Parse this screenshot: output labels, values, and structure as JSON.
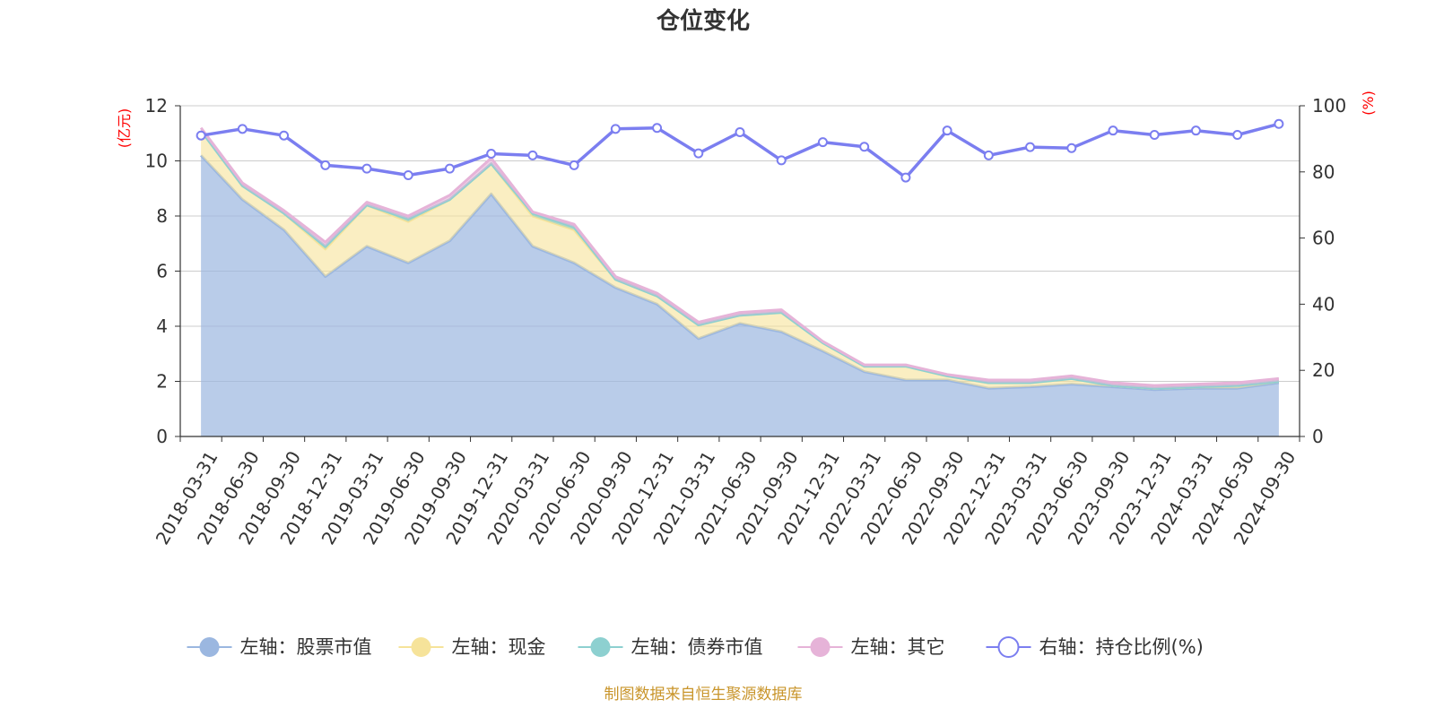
{
  "chart_data": {
    "type": "area",
    "title": "仓位变化",
    "left_axis": {
      "unit_label": "(亿元)",
      "ylim": [
        0,
        12
      ],
      "ticks": [
        0,
        2,
        4,
        6,
        8,
        10,
        12
      ]
    },
    "right_axis": {
      "unit_label": "(%)",
      "ylim": [
        0,
        100
      ],
      "ticks": [
        0,
        20,
        40,
        60,
        80,
        100
      ]
    },
    "categories": [
      "2018-03-31",
      "2018-06-30",
      "2018-09-30",
      "2018-12-31",
      "2019-03-31",
      "2019-06-30",
      "2019-09-30",
      "2019-12-31",
      "2020-03-31",
      "2020-06-30",
      "2020-09-30",
      "2020-12-31",
      "2021-03-31",
      "2021-06-30",
      "2021-09-30",
      "2021-12-31",
      "2022-03-31",
      "2022-06-30",
      "2022-09-30",
      "2022-12-31",
      "2023-03-31",
      "2023-06-30",
      "2023-09-30",
      "2023-12-31",
      "2024-03-31",
      "2024-06-30",
      "2024-09-30"
    ],
    "series": [
      {
        "name": "左轴：股票市值",
        "axis": "left",
        "kind": "stack-area",
        "color": "#9bb7e0",
        "values": [
          10.2,
          8.6,
          7.5,
          5.8,
          6.9,
          6.3,
          7.1,
          8.8,
          6.9,
          6.3,
          5.4,
          4.8,
          3.55,
          4.1,
          3.8,
          3.1,
          2.35,
          2.05,
          2.05,
          1.75,
          1.8,
          1.9,
          1.8,
          1.7,
          1.75,
          1.75,
          1.95
        ]
      },
      {
        "name": "左轴：现金",
        "axis": "left",
        "kind": "stack-area",
        "color": "#f6e39a",
        "values": [
          0.9,
          0.5,
          0.6,
          1.0,
          1.5,
          1.5,
          1.5,
          1.1,
          1.1,
          1.2,
          0.3,
          0.3,
          0.5,
          0.3,
          0.7,
          0.3,
          0.2,
          0.5,
          0.15,
          0.2,
          0.15,
          0.2,
          0.05,
          0.05,
          0.05,
          0.1,
          0.05
        ]
      },
      {
        "name": "左轴：债券市值",
        "axis": "left",
        "kind": "stack-area",
        "color": "#8dd0d0",
        "values": [
          0,
          0,
          0,
          0.1,
          0,
          0.1,
          0,
          0,
          0.1,
          0.1,
          0,
          0,
          0,
          0,
          0,
          0,
          0,
          0,
          0,
          0,
          0,
          0,
          0,
          0,
          0,
          0,
          0
        ]
      },
      {
        "name": "左轴：其它",
        "axis": "left",
        "kind": "stack-area",
        "color": "#e6b3d8",
        "values": [
          0.1,
          0.1,
          0.1,
          0.15,
          0.1,
          0.1,
          0.15,
          0.2,
          0.05,
          0.1,
          0.1,
          0.1,
          0.1,
          0.1,
          0.1,
          0.05,
          0.05,
          0.05,
          0.05,
          0.1,
          0.1,
          0.1,
          0.1,
          0.1,
          0.1,
          0.1,
          0.1
        ]
      },
      {
        "name": "右轴：持仓比例(%)",
        "axis": "right",
        "kind": "line",
        "color": "#7b7ef0",
        "values": [
          91,
          93,
          91,
          82,
          81,
          79,
          81,
          85.5,
          85,
          82,
          93,
          93.3,
          85.6,
          92,
          83.5,
          89,
          87.6,
          78.3,
          92.5,
          85,
          87.5,
          87.2,
          92.5,
          91.2,
          92.5,
          91.2,
          94.5
        ]
      }
    ],
    "legend_position": "bottom-center",
    "grid": true
  },
  "source_note": "制图数据来自恒生聚源数据库"
}
